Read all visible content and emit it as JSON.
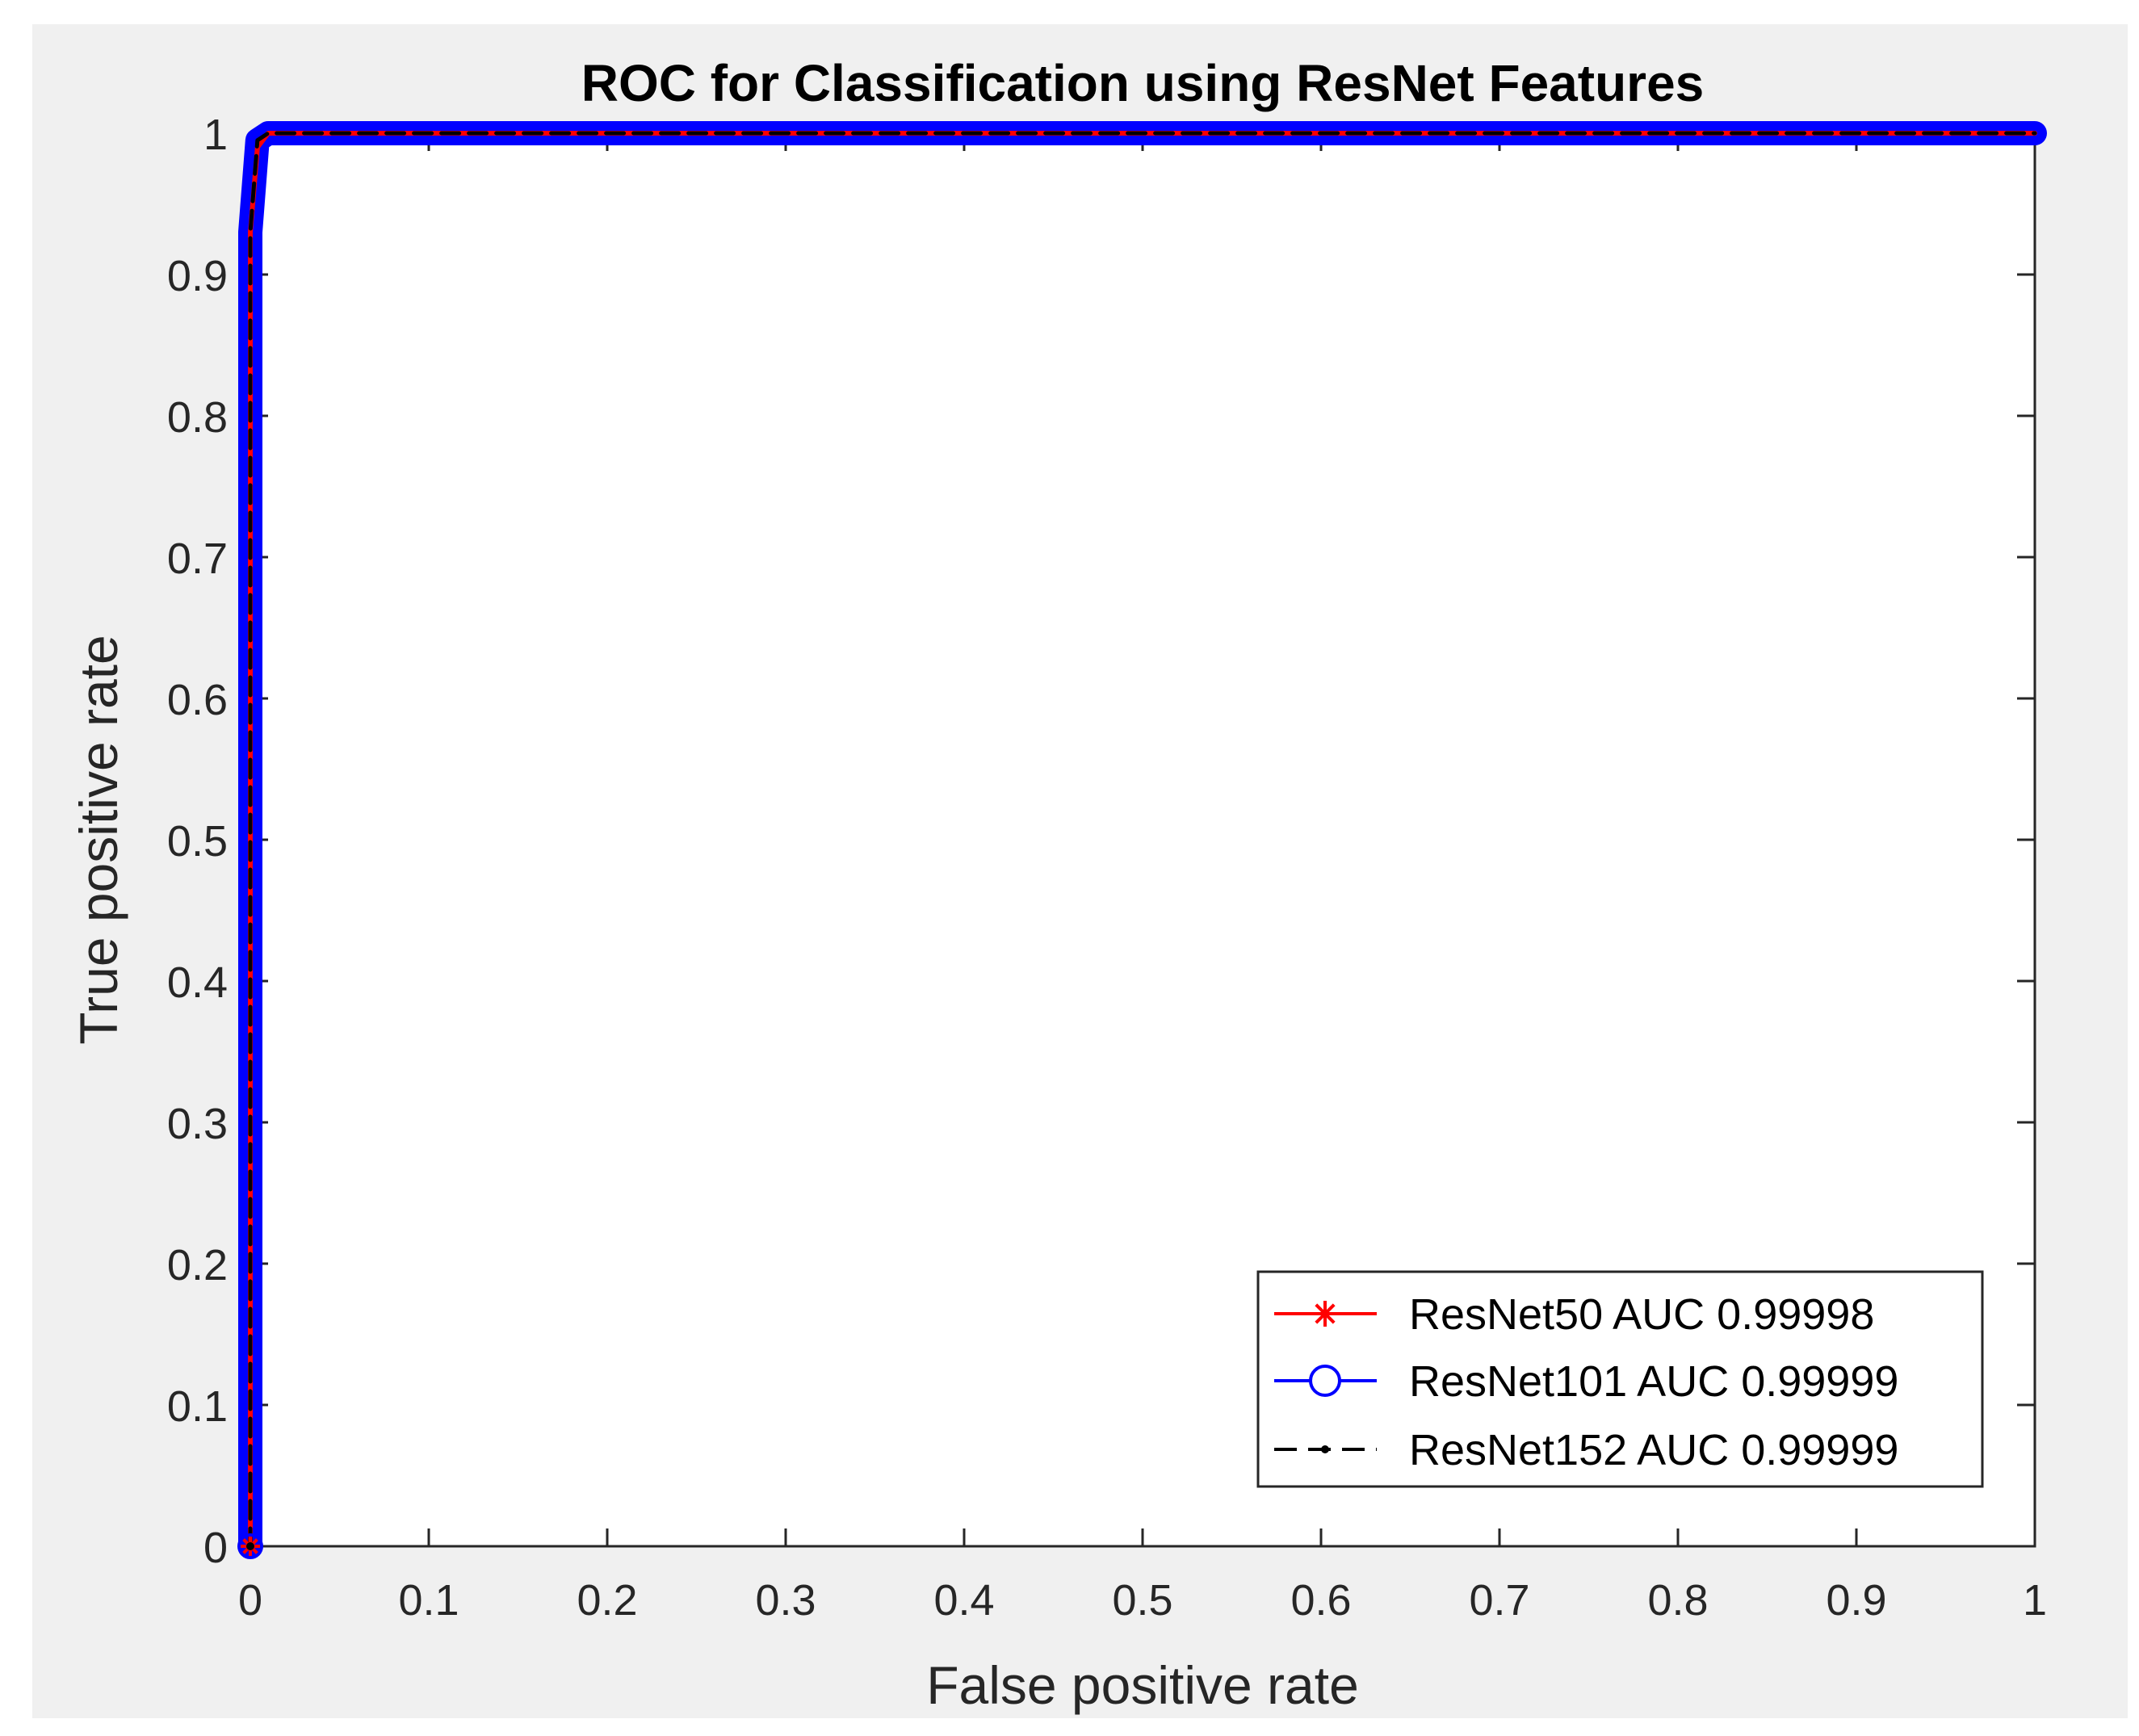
{
  "chart_data": {
    "type": "line",
    "title": "ROC for Classification using ResNet Features",
    "xlabel": "False positive rate",
    "ylabel": "True positive rate",
    "xlim": [
      0,
      1
    ],
    "ylim": [
      0,
      1
    ],
    "xticks": [
      "0",
      "0.1",
      "0.2",
      "0.3",
      "0.4",
      "0.5",
      "0.6",
      "0.7",
      "0.8",
      "0.9",
      "1"
    ],
    "yticks": [
      "0",
      "0.1",
      "0.2",
      "0.3",
      "0.4",
      "0.5",
      "0.6",
      "0.7",
      "0.8",
      "0.9",
      "1"
    ],
    "grid": false,
    "legend_position": "bottom-right",
    "series": [
      {
        "name": "ResNet50 AUC 0.99998",
        "color": "#ff0000",
        "marker": "asterisk",
        "line": "solid",
        "x": [
          0,
          0,
          0.004,
          0.01,
          1
        ],
        "y": [
          0,
          0.93,
          0.99,
          1,
          1
        ]
      },
      {
        "name": "ResNet101 AUC 0.99999",
        "color": "#0000ff",
        "marker": "circle",
        "line": "solid",
        "x": [
          0,
          0,
          0.004,
          0.01,
          1
        ],
        "y": [
          0,
          0.93,
          0.995,
          1,
          1
        ]
      },
      {
        "name": "ResNet152 AUC 0.99999",
        "color": "#000000",
        "marker": "point",
        "line": "dashed",
        "x": [
          0,
          0,
          0.004,
          0.01,
          1
        ],
        "y": [
          0,
          0.93,
          0.995,
          1,
          1
        ]
      }
    ]
  }
}
